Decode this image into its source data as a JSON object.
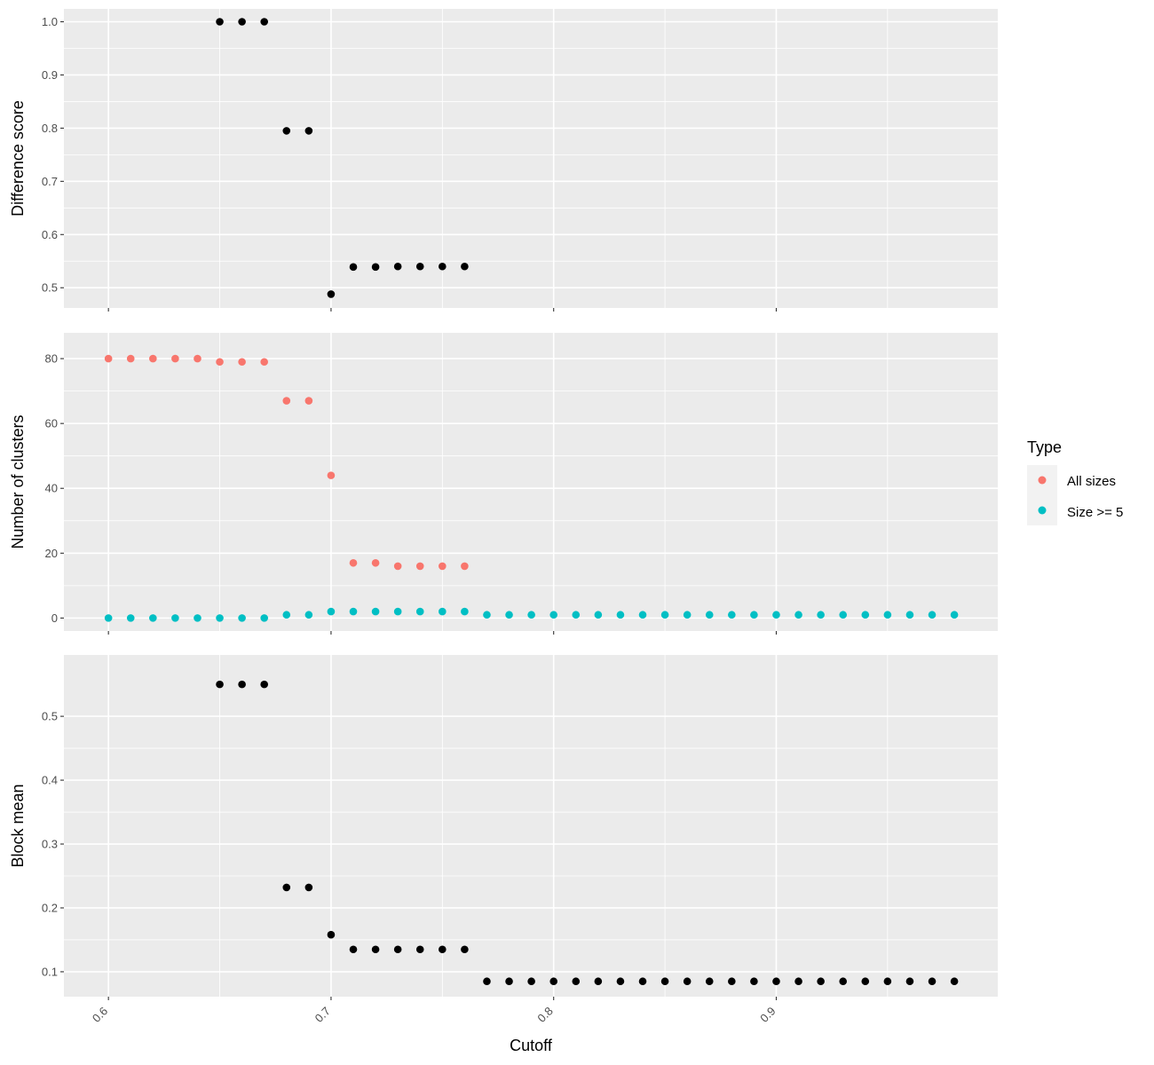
{
  "colors": {
    "panel_bg": "#EBEBEB",
    "grid": "#FFFFFF",
    "axis_ticks": "#333333",
    "tick_text": "#4D4D4D",
    "point_black": "#000000",
    "all_sizes": "#F8766D",
    "size_ge_5": "#00BFC4"
  },
  "chart_data": {
    "type": "scatter",
    "x": [
      0.6,
      0.61,
      0.62,
      0.63,
      0.64,
      0.65,
      0.66,
      0.67,
      0.68,
      0.69,
      0.7,
      0.71,
      0.72,
      0.73,
      0.74,
      0.75,
      0.76,
      0.77,
      0.78,
      0.79,
      0.8,
      0.81,
      0.82,
      0.83,
      0.84,
      0.85,
      0.86,
      0.87,
      0.88,
      0.89,
      0.9,
      0.91,
      0.92,
      0.93,
      0.94,
      0.95,
      0.96,
      0.97,
      0.98
    ],
    "xlabel": "Cutoff",
    "xlim": [
      0.58,
      0.9995
    ],
    "xticks": [
      "0.6",
      "0.7",
      "0.8",
      "0.9"
    ],
    "xtick_values": [
      0.6,
      0.7,
      0.8,
      0.9
    ],
    "legend": {
      "title": "Type",
      "position": "right",
      "entries": [
        "All sizes",
        "Size >= 5"
      ]
    },
    "panels": [
      {
        "ylabel": "Difference score",
        "ylim": [
          0.462,
          1.0
        ],
        "yticks": [
          "0.5",
          "0.6",
          "0.7",
          "0.8",
          "0.9",
          "1.0"
        ],
        "ytick_values": [
          0.5,
          0.6,
          0.7,
          0.8,
          0.9,
          1.0
        ],
        "series": [
          {
            "x": [
              0.65,
              0.66,
              0.67,
              0.68,
              0.69,
              0.7,
              0.71,
              0.72,
              0.73,
              0.74,
              0.75,
              0.76
            ],
            "values": [
              1.0,
              1.0,
              1.0,
              0.795,
              0.795,
              0.488,
              0.539,
              0.539,
              0.54,
              0.54,
              0.54,
              0.54
            ],
            "color": "#000000"
          }
        ]
      },
      {
        "ylabel": "Number of clusters",
        "ylim": [
          -4,
          84
        ],
        "yticks": [
          "0",
          "20",
          "40",
          "60",
          "80"
        ],
        "ytick_values": [
          0,
          20,
          40,
          60,
          80
        ],
        "series": [
          {
            "name": "All sizes",
            "color": "#F8766D",
            "x": [
              0.6,
              0.61,
              0.62,
              0.63,
              0.64,
              0.65,
              0.66,
              0.67,
              0.68,
              0.69,
              0.7,
              0.71,
              0.72,
              0.73,
              0.74,
              0.75,
              0.76
            ],
            "values": [
              80,
              80,
              80,
              80,
              80,
              79,
              79,
              79,
              67,
              67,
              44,
              17,
              17,
              16,
              16,
              16,
              16
            ]
          },
          {
            "name": "Size >= 5",
            "color": "#00BFC4",
            "x": [
              0.6,
              0.61,
              0.62,
              0.63,
              0.64,
              0.65,
              0.66,
              0.67,
              0.68,
              0.69,
              0.7,
              0.71,
              0.72,
              0.73,
              0.74,
              0.75,
              0.76,
              0.77,
              0.78,
              0.79,
              0.8,
              0.81,
              0.82,
              0.83,
              0.84,
              0.85,
              0.86,
              0.87,
              0.88,
              0.89,
              0.9,
              0.91,
              0.92,
              0.93,
              0.94,
              0.95,
              0.96,
              0.97,
              0.98
            ],
            "values": [
              0,
              0,
              0,
              0,
              0,
              0,
              0,
              0,
              1,
              1,
              2,
              2,
              2,
              2,
              2,
              2,
              2,
              1,
              1,
              1,
              1,
              1,
              1,
              1,
              1,
              1,
              1,
              1,
              1,
              1,
              1,
              1,
              1,
              1,
              1,
              1,
              1,
              1,
              1
            ]
          }
        ]
      },
      {
        "ylabel": "Block mean",
        "ylim": [
          0.061,
          0.573
        ],
        "yticks": [
          "0.1",
          "0.2",
          "0.3",
          "0.4",
          "0.5"
        ],
        "ytick_values": [
          0.1,
          0.2,
          0.3,
          0.4,
          0.5
        ],
        "series": [
          {
            "color": "#000000",
            "x": [
              0.65,
              0.66,
              0.67,
              0.68,
              0.69,
              0.7,
              0.71,
              0.72,
              0.73,
              0.74,
              0.75,
              0.76,
              0.77,
              0.78,
              0.79,
              0.8,
              0.81,
              0.82,
              0.83,
              0.84,
              0.85,
              0.86,
              0.87,
              0.88,
              0.89,
              0.9,
              0.91,
              0.92,
              0.93,
              0.94,
              0.95,
              0.96,
              0.97,
              0.98
            ],
            "values": [
              0.55,
              0.55,
              0.55,
              0.232,
              0.232,
              0.158,
              0.135,
              0.135,
              0.135,
              0.135,
              0.135,
              0.135,
              0.085,
              0.085,
              0.085,
              0.085,
              0.085,
              0.085,
              0.085,
              0.085,
              0.085,
              0.085,
              0.085,
              0.085,
              0.085,
              0.085,
              0.085,
              0.085,
              0.085,
              0.085,
              0.085,
              0.085,
              0.085,
              0.085
            ]
          }
        ]
      }
    ]
  }
}
